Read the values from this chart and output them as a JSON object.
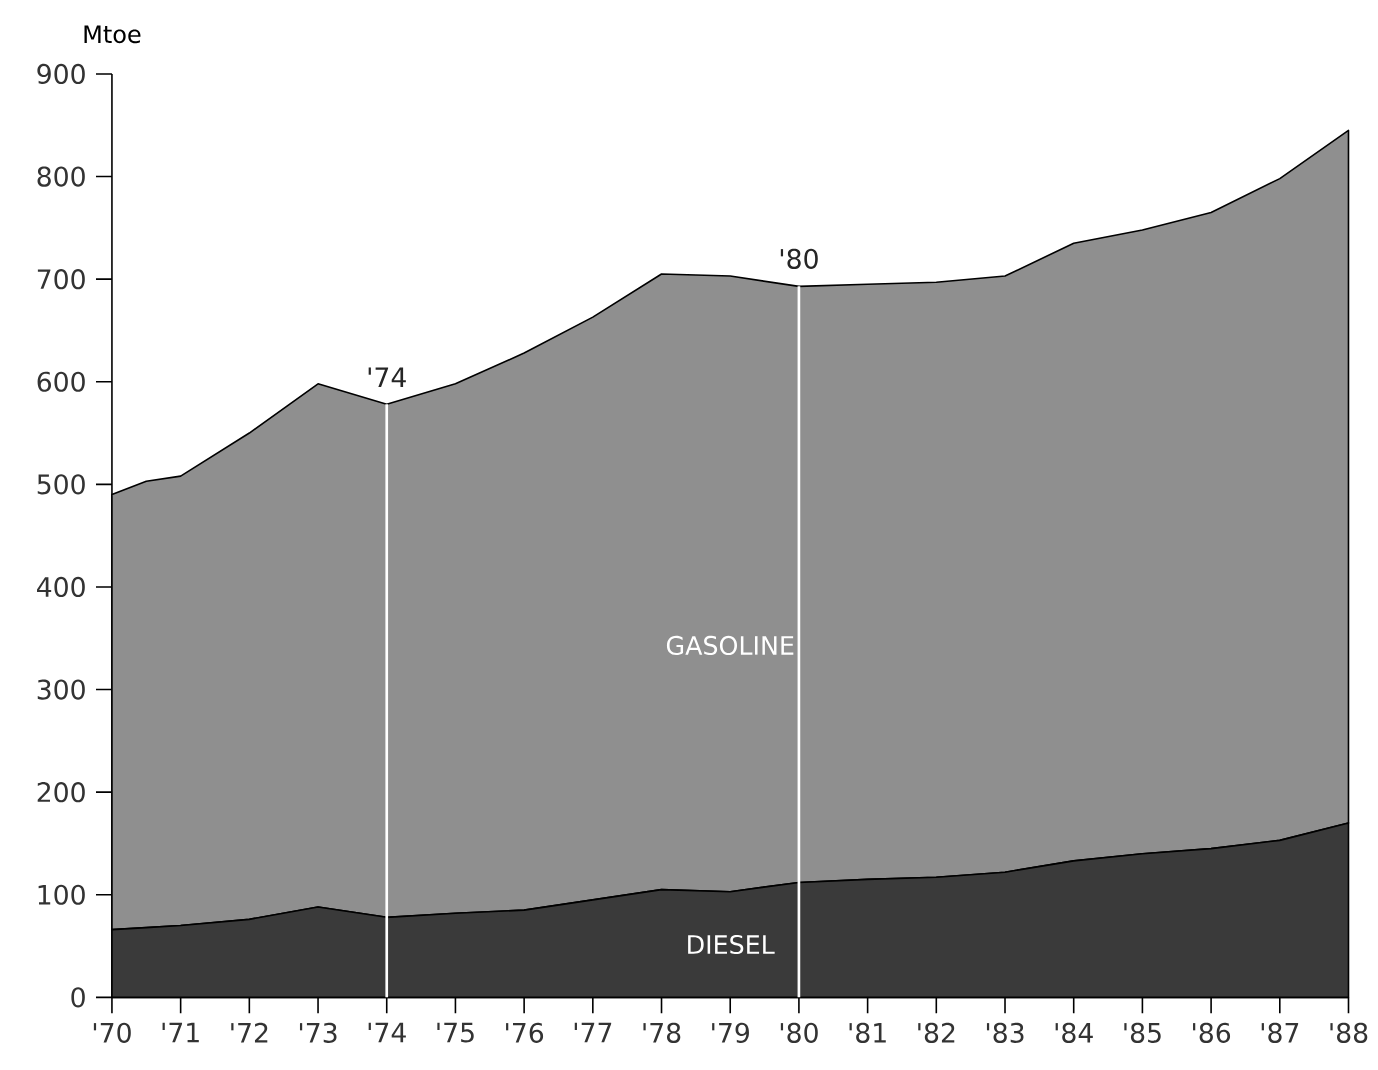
{
  "chart_data": {
    "type": "area",
    "stacked": true,
    "ylabel": "Mtoe",
    "x": [
      1970,
      1970.5,
      1971,
      1972,
      1973,
      1974,
      1975,
      1976,
      1977,
      1978,
      1979,
      1980,
      1981,
      1982,
      1983,
      1984,
      1985,
      1986,
      1987,
      1988
    ],
    "series": [
      {
        "name": "DIESEL",
        "color": "#3a3a3a",
        "values": [
          66,
          68,
          70,
          76,
          88,
          78,
          82,
          85,
          95,
          105,
          103,
          112,
          115,
          117,
          122,
          133,
          140,
          145,
          153,
          170
        ]
      },
      {
        "name": "GASOLINE",
        "color": "#8f8f8f",
        "values": [
          424,
          435,
          438,
          474,
          510,
          500,
          516,
          543,
          568,
          600,
          600,
          581,
          580,
          580,
          581,
          602,
          608,
          620,
          645,
          675
        ]
      }
    ],
    "xlim": [
      1970,
      1988
    ],
    "ylim": [
      0,
      900
    ],
    "xticks": [
      {
        "value": 1970,
        "label": "'70"
      },
      {
        "value": 1971,
        "label": "'71"
      },
      {
        "value": 1972,
        "label": "'72"
      },
      {
        "value": 1973,
        "label": "'73"
      },
      {
        "value": 1974,
        "label": "'74"
      },
      {
        "value": 1975,
        "label": "'75"
      },
      {
        "value": 1976,
        "label": "'76"
      },
      {
        "value": 1977,
        "label": "'77"
      },
      {
        "value": 1978,
        "label": "'78"
      },
      {
        "value": 1979,
        "label": "'79"
      },
      {
        "value": 1980,
        "label": "'80"
      },
      {
        "value": 1981,
        "label": "'81"
      },
      {
        "value": 1982,
        "label": "'82"
      },
      {
        "value": 1983,
        "label": "'83"
      },
      {
        "value": 1984,
        "label": "'84"
      },
      {
        "value": 1985,
        "label": "'85"
      },
      {
        "value": 1986,
        "label": "'86"
      },
      {
        "value": 1987,
        "label": "'87"
      },
      {
        "value": 1988,
        "label": "'88"
      }
    ],
    "yticks": [
      0,
      100,
      200,
      300,
      400,
      500,
      600,
      700,
      800,
      900
    ],
    "ref_lines": [
      {
        "axis": "x",
        "value": 1974,
        "color": "#ffffff"
      },
      {
        "axis": "x",
        "value": 1980,
        "color": "#ffffff"
      }
    ],
    "annotations": [
      {
        "text": "'74",
        "x": 1974,
        "y": 578
      },
      {
        "text": "'80",
        "x": 1980,
        "y": 693
      }
    ]
  }
}
